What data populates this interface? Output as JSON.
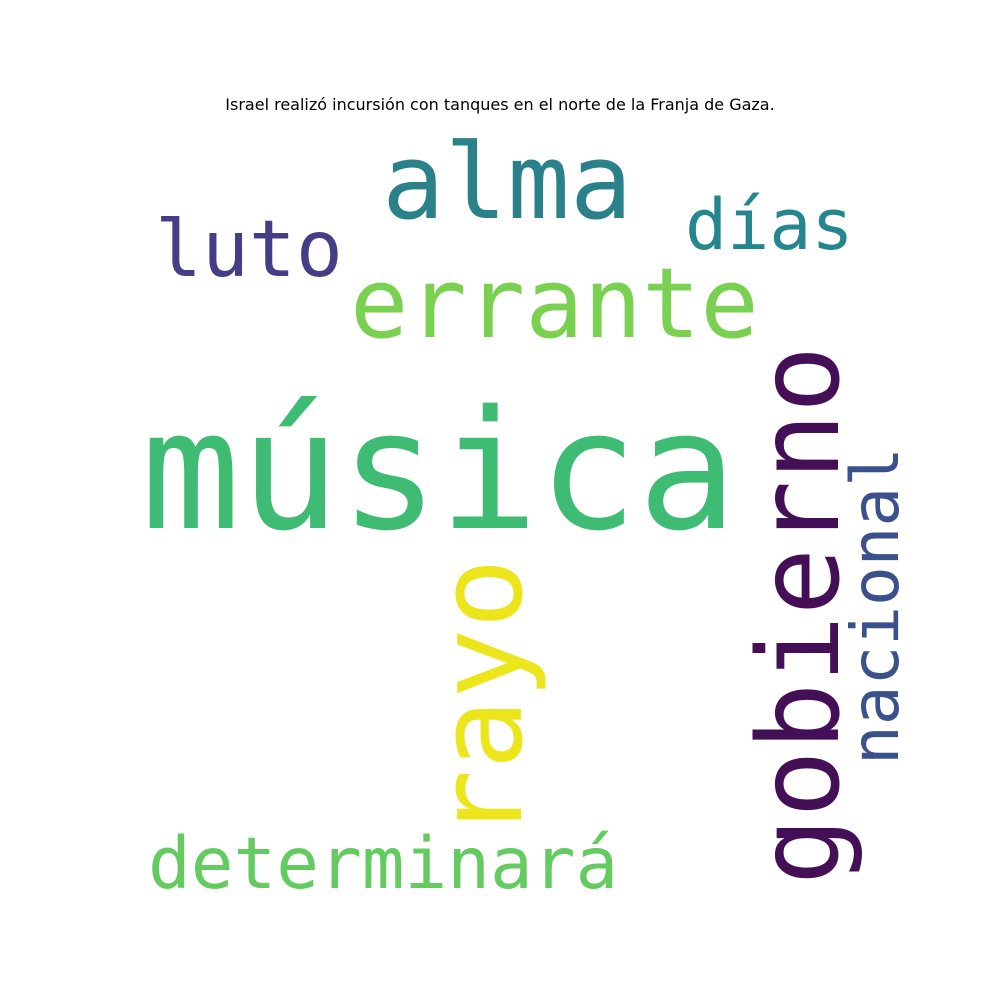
{
  "title": "Israel realizó incursión con tanques en el norte de la Franja de Gaza.",
  "words": {
    "musica": {
      "text": "música",
      "color": "#3fbc73"
    },
    "errante": {
      "text": "errante",
      "color": "#7ad151"
    },
    "alma": {
      "text": "alma",
      "color": "#2b8189"
    },
    "luto": {
      "text": "luto",
      "color": "#433e85"
    },
    "dias": {
      "text": "días",
      "color": "#25868e"
    },
    "gobierno": {
      "text": "gobierno",
      "color": "#440f57"
    },
    "nacional": {
      "text": "nacional",
      "color": "#3b518b"
    },
    "rayo": {
      "text": "rayo",
      "color": "#ece51b"
    },
    "determinara": {
      "text": "determinará",
      "color": "#63cb5f"
    }
  }
}
